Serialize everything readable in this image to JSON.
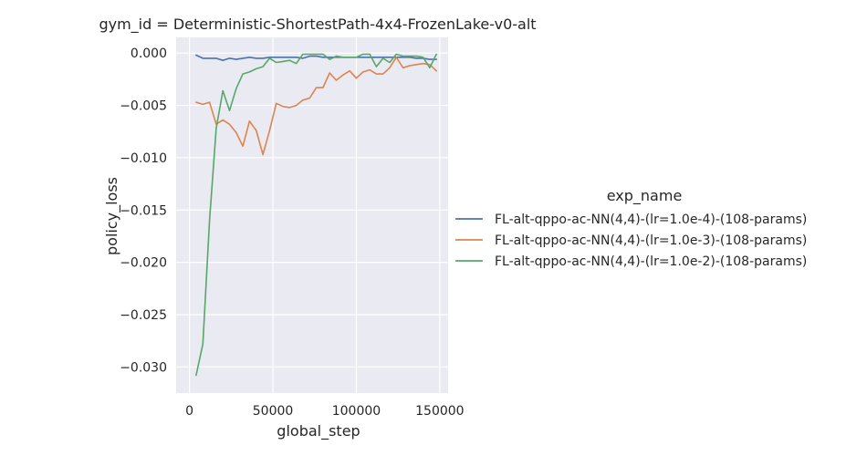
{
  "chart_data": {
    "type": "line",
    "title": "gym_id = Deterministic-ShortestPath-4x4-FrozenLake-v0-alt",
    "xlabel": "global_step",
    "ylabel": "policy_loss",
    "xlim": [
      -8000,
      155000
    ],
    "ylim": [
      -0.0325,
      0.0015
    ],
    "x_ticks": [
      0,
      50000,
      100000,
      150000
    ],
    "x_tick_labels": [
      "0",
      "50000",
      "100000",
      "150000"
    ],
    "y_ticks": [
      0.0,
      -0.005,
      -0.01,
      -0.015,
      -0.02,
      -0.025,
      -0.03
    ],
    "y_tick_labels": [
      "0.000",
      "−0.005",
      "−0.010",
      "−0.015",
      "−0.020",
      "−0.025",
      "−0.030"
    ],
    "grid": true,
    "legend": {
      "title": "exp_name",
      "placement": "right-outside"
    },
    "series": [
      {
        "name": "FL-alt-qppo-ac-NN(4,4)-(lr=1.0e-4)-(108-params)",
        "color": "#4c72b0",
        "x": [
          4000,
          8000,
          12000,
          16000,
          20000,
          24000,
          28000,
          32000,
          36000,
          40000,
          44000,
          48000,
          52000,
          56000,
          60000,
          64000,
          68000,
          72000,
          76000,
          80000,
          84000,
          88000,
          92000,
          96000,
          100000,
          104000,
          108000,
          112000,
          116000,
          120000,
          124000,
          128000,
          132000,
          136000,
          140000,
          144000,
          148000
        ],
        "y": [
          -0.0002,
          -0.0005,
          -0.0005,
          -0.0005,
          -0.0007,
          -0.0005,
          -0.0006,
          -0.0005,
          -0.0004,
          -0.0005,
          -0.0005,
          -0.0004,
          -0.0004,
          -0.0004,
          -0.0004,
          -0.0004,
          -0.0005,
          -0.0003,
          -0.0003,
          -0.0004,
          -0.0004,
          -0.0004,
          -0.0004,
          -0.0004,
          -0.0004,
          -0.0004,
          -0.0004,
          -0.0004,
          -0.0004,
          -0.0004,
          -0.0004,
          -0.0004,
          -0.0004,
          -0.0005,
          -0.0005,
          -0.0006,
          -0.0006
        ]
      },
      {
        "name": "FL-alt-qppo-ac-NN(4,4)-(lr=1.0e-3)-(108-params)",
        "color": "#dd8452",
        "x": [
          4000,
          8000,
          12000,
          16000,
          20000,
          24000,
          28000,
          32000,
          36000,
          40000,
          44000,
          48000,
          52000,
          56000,
          60000,
          64000,
          68000,
          72000,
          76000,
          80000,
          84000,
          88000,
          92000,
          96000,
          100000,
          104000,
          108000,
          112000,
          116000,
          120000,
          124000,
          128000,
          132000,
          136000,
          140000,
          144000,
          148000
        ],
        "y": [
          -0.0047,
          -0.0049,
          -0.0047,
          -0.0068,
          -0.0064,
          -0.0068,
          -0.0076,
          -0.0089,
          -0.0065,
          -0.0074,
          -0.0097,
          -0.0074,
          -0.0048,
          -0.0051,
          -0.0052,
          -0.005,
          -0.0045,
          -0.0043,
          -0.0033,
          -0.0033,
          -0.0019,
          -0.0026,
          -0.0021,
          -0.0017,
          -0.0024,
          -0.0018,
          -0.0016,
          -0.002,
          -0.002,
          -0.0014,
          -0.0004,
          -0.0014,
          -0.0012,
          -0.0011,
          -0.001,
          -0.0011,
          -0.0017
        ]
      },
      {
        "name": "FL-alt-qppo-ac-NN(4,4)-(lr=1.0e-2)-(108-params)",
        "color": "#55a868",
        "x": [
          4000,
          8000,
          12000,
          16000,
          20000,
          24000,
          28000,
          32000,
          36000,
          40000,
          44000,
          48000,
          52000,
          56000,
          60000,
          64000,
          68000,
          72000,
          76000,
          80000,
          84000,
          88000,
          92000,
          96000,
          100000,
          104000,
          108000,
          112000,
          116000,
          120000,
          124000,
          128000,
          132000,
          136000,
          140000,
          144000,
          148000
        ],
        "y": [
          -0.0308,
          -0.0278,
          -0.016,
          -0.0072,
          -0.0036,
          -0.0055,
          -0.0034,
          -0.002,
          -0.0018,
          -0.0015,
          -0.0013,
          -0.0005,
          -0.0009,
          -0.0008,
          -0.0007,
          -0.001,
          -0.0001,
          -0.0001,
          -0.0001,
          -0.0001,
          -0.0006,
          -0.0003,
          -0.0004,
          -0.0004,
          -0.0004,
          -0.0001,
          -0.0001,
          -0.0013,
          -0.0005,
          -0.0009,
          -0.0001,
          -0.0003,
          -0.0003,
          -0.0003,
          -0.0004,
          -0.0014,
          -0.0001
        ]
      }
    ]
  }
}
